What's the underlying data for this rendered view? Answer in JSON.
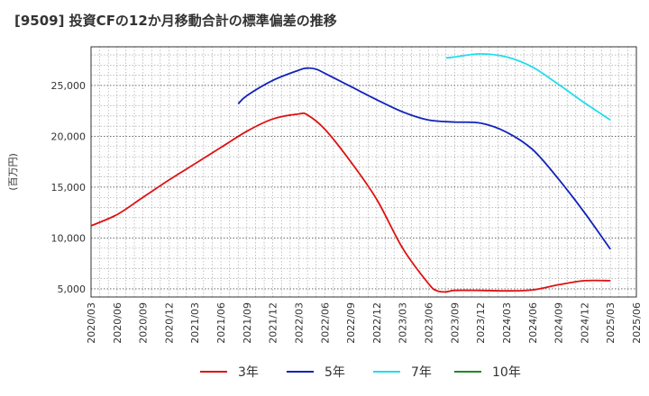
{
  "chart_data": {
    "type": "line",
    "title": "[9509]  投資CFの12か月移動合計の標準偏差の推移",
    "ylabel": "(百万円)",
    "xlabel": "",
    "ylim": [
      4200,
      28800
    ],
    "yticks": [
      5000,
      10000,
      15000,
      20000,
      25000
    ],
    "ytick_labels": [
      "5,000",
      "10,000",
      "15,000",
      "20,000",
      "25,000"
    ],
    "xticks": [
      "2020/03",
      "2020/06",
      "2020/09",
      "2020/12",
      "2021/03",
      "2021/06",
      "2021/09",
      "2021/12",
      "2022/03",
      "2022/06",
      "2022/09",
      "2022/12",
      "2023/03",
      "2023/06",
      "2023/09",
      "2023/12",
      "2024/03",
      "2024/06",
      "2024/09",
      "2024/12",
      "2025/03",
      "2025/06"
    ],
    "grid": true,
    "legend_position": "bottom",
    "series": [
      {
        "name": "3年",
        "color": "#dd1111",
        "x": [
          "2020/03",
          "2020/06",
          "2020/09",
          "2020/12",
          "2021/03",
          "2021/06",
          "2021/09",
          "2021/12",
          "2022/03",
          "2022/04",
          "2022/06",
          "2022/09",
          "2022/12",
          "2023/03",
          "2023/06",
          "2023/07",
          "2023/08",
          "2023/09",
          "2023/12",
          "2024/03",
          "2024/06",
          "2024/09",
          "2024/12",
          "2025/03"
        ],
        "y": [
          11200,
          12300,
          14000,
          15700,
          17300,
          18900,
          20500,
          21700,
          22200,
          22100,
          20700,
          17500,
          13800,
          9000,
          5500,
          4800,
          4700,
          4850,
          4850,
          4800,
          4900,
          5400,
          5800,
          5800
        ]
      },
      {
        "name": "5年",
        "color": "#1122bb",
        "x": [
          "2021/08",
          "2021/09",
          "2021/12",
          "2022/03",
          "2022/04",
          "2022/05",
          "2022/06",
          "2022/09",
          "2022/12",
          "2023/03",
          "2023/06",
          "2023/09",
          "2023/12",
          "2024/03",
          "2024/06",
          "2024/09",
          "2024/12",
          "2025/03"
        ],
        "y": [
          23200,
          24000,
          25500,
          26500,
          26700,
          26600,
          26200,
          24900,
          23600,
          22400,
          21600,
          21400,
          21300,
          20400,
          18700,
          15800,
          12500,
          8900
        ]
      },
      {
        "name": "7年",
        "color": "#22ddee",
        "x": [
          "2023/08",
          "2023/09",
          "2023/12",
          "2024/03",
          "2024/06",
          "2024/09",
          "2024/12",
          "2025/03"
        ],
        "y": [
          27700,
          27800,
          28100,
          27800,
          26800,
          25100,
          23300,
          21600
        ]
      },
      {
        "name": "10年",
        "color": "#228822",
        "x": [],
        "y": []
      }
    ]
  }
}
